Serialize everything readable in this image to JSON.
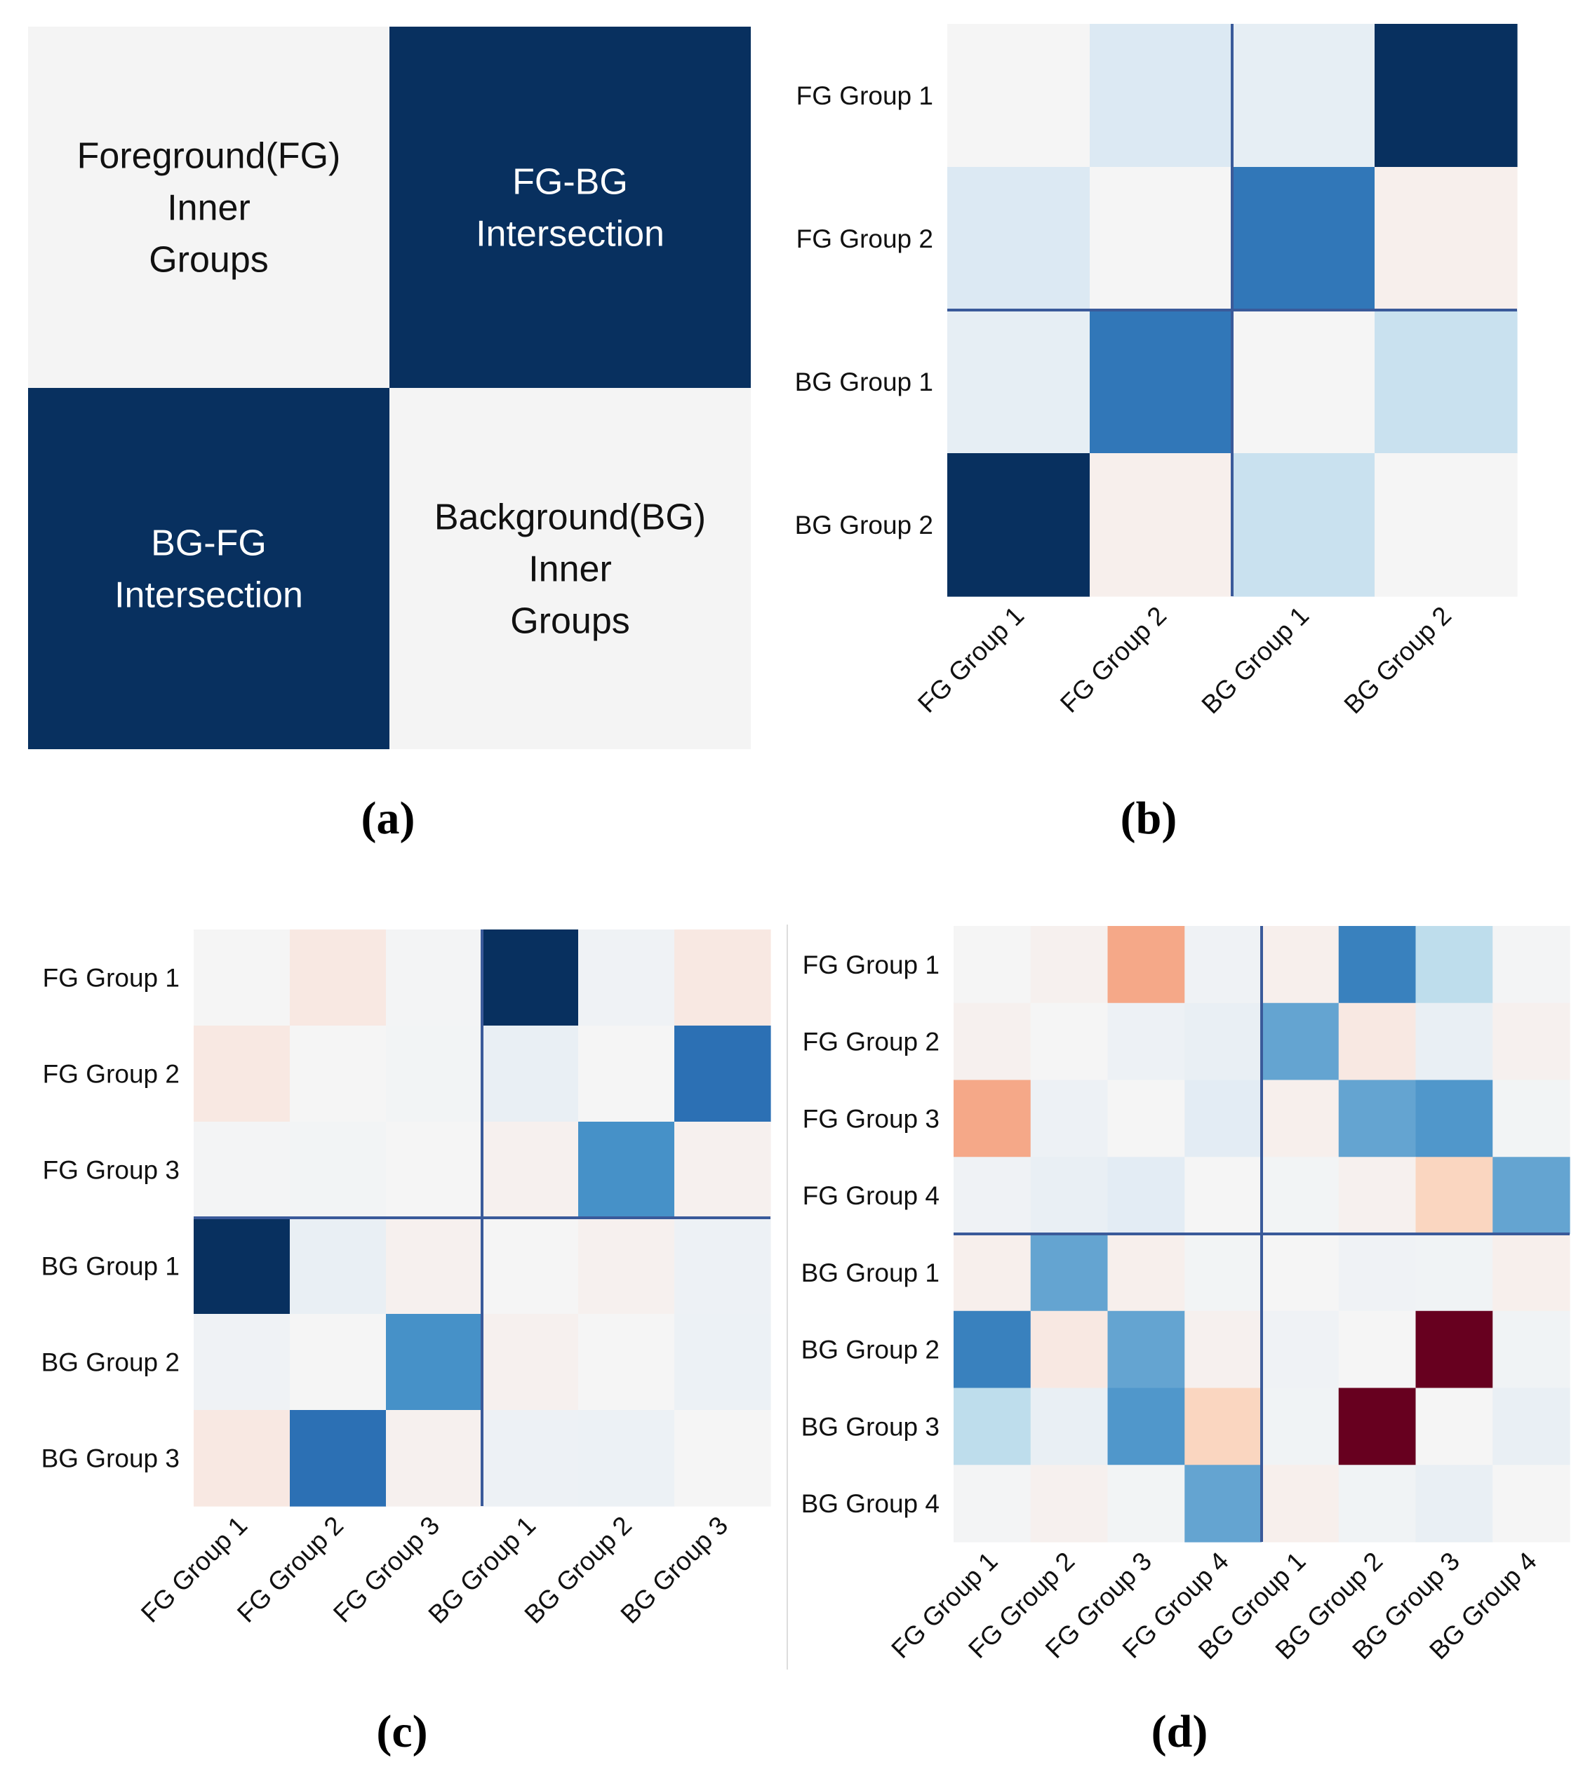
{
  "colors": {
    "light": "#f4f4f4",
    "dark": "#08305f",
    "divider": "#3a5a9a"
  },
  "chart_data": [
    {
      "panel": "a",
      "type": "heatmap",
      "caption": "(a)",
      "cells": [
        {
          "lines": [
            "Foreground(FG)",
            "Inner",
            "Groups"
          ],
          "shade": "light"
        },
        {
          "lines": [
            "FG-BG",
            "Intersection"
          ],
          "shade": "dark"
        },
        {
          "lines": [
            "BG-FG",
            "Intersection"
          ],
          "shade": "dark"
        },
        {
          "lines": [
            "Background(BG)",
            "Inner",
            "Groups"
          ],
          "shade": "light"
        }
      ]
    },
    {
      "panel": "b",
      "type": "heatmap",
      "caption": "(b)",
      "rows": [
        "FG Group 1",
        "FG Group 2",
        "BG Group 1",
        "BG Group 2"
      ],
      "cols": [
        "FG Group 1",
        "FG Group 2",
        "BG Group 1",
        "BG Group 2"
      ],
      "split": 2,
      "values": [
        [
          0.0,
          0.16,
          0.1,
          1.0
        ],
        [
          0.16,
          0.0,
          0.78,
          -0.04
        ],
        [
          0.1,
          0.78,
          0.0,
          0.25
        ],
        [
          1.0,
          -0.04,
          0.25,
          0.0
        ]
      ],
      "vmin": -1,
      "vmax": 1
    },
    {
      "panel": "c",
      "type": "heatmap",
      "caption": "(c)",
      "rows": [
        "FG Group 1",
        "FG Group 2",
        "FG Group 3",
        "BG Group 1",
        "BG Group 2",
        "BG Group 3"
      ],
      "cols": [
        "FG Group 1",
        "FG Group 2",
        "FG Group 3",
        "BG Group 1",
        "BG Group 2",
        "BG Group 3"
      ],
      "split": 3,
      "values": [
        [
          0.0,
          -0.08,
          0.01,
          1.0,
          0.04,
          -0.08
        ],
        [
          -0.08,
          0.0,
          0.02,
          0.08,
          0.0,
          0.8
        ],
        [
          0.01,
          0.02,
          0.0,
          -0.03,
          0.7,
          -0.03
        ],
        [
          1.0,
          0.08,
          -0.03,
          0.0,
          -0.03,
          0.05
        ],
        [
          0.04,
          0.0,
          0.7,
          -0.03,
          0.0,
          0.06
        ],
        [
          -0.08,
          0.8,
          -0.03,
          0.05,
          0.06,
          0.0
        ]
      ],
      "vmin": -1,
      "vmax": 1
    },
    {
      "panel": "d",
      "type": "heatmap",
      "caption": "(d)",
      "rows": [
        "FG Group 1",
        "FG Group 2",
        "FG Group 3",
        "FG Group 4",
        "BG Group 1",
        "BG Group 2",
        "BG Group 3",
        "BG Group 4"
      ],
      "cols": [
        "FG Group 1",
        "FG Group 2",
        "FG Group 3",
        "FG Group 4",
        "BG Group 1",
        "BG Group 2",
        "BG Group 3",
        "BG Group 4"
      ],
      "split": 4,
      "values": [
        [
          0.0,
          -0.03,
          -0.35,
          0.04,
          -0.04,
          0.75,
          0.3,
          0.01
        ],
        [
          -0.03,
          0.0,
          0.05,
          0.08,
          0.55,
          -0.08,
          0.08,
          -0.03
        ],
        [
          -0.35,
          0.05,
          0.0,
          0.12,
          -0.04,
          0.55,
          0.65,
          0.02
        ],
        [
          0.04,
          0.08,
          0.12,
          0.0,
          0.02,
          -0.03,
          -0.2,
          0.55
        ],
        [
          -0.04,
          0.55,
          -0.04,
          0.02,
          0.0,
          0.04,
          0.03,
          -0.04
        ],
        [
          0.75,
          -0.08,
          0.55,
          -0.03,
          0.04,
          0.0,
          -1.0,
          0.03
        ],
        [
          0.3,
          0.08,
          0.65,
          -0.2,
          0.03,
          -1.0,
          0.0,
          0.08
        ],
        [
          0.01,
          -0.03,
          0.02,
          0.55,
          -0.04,
          0.03,
          0.08,
          0.0
        ]
      ],
      "vmin": -1,
      "vmax": 1
    }
  ]
}
